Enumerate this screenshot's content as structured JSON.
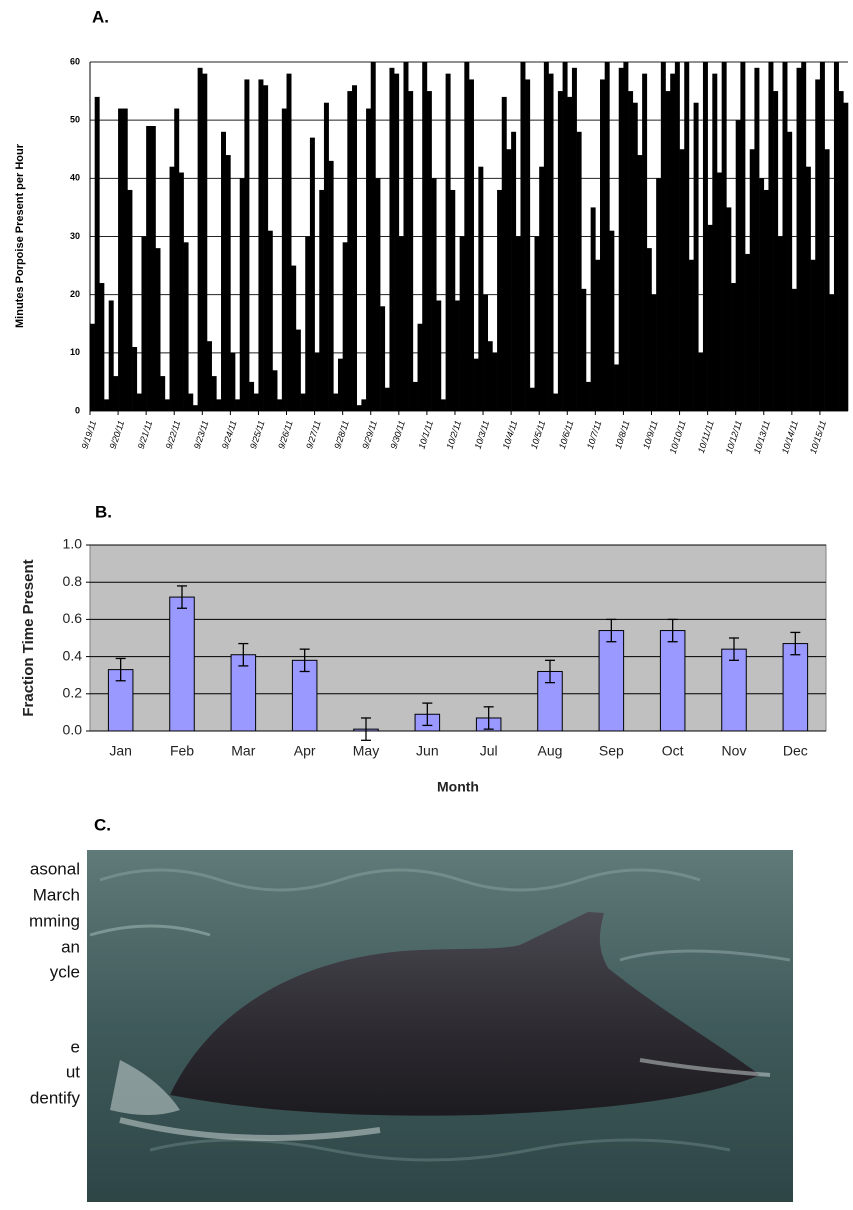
{
  "chart_data": [
    {
      "type": "bar",
      "title": "A.",
      "y_label": "Minutes Porpoise Present per Hour",
      "color": "#000000",
      "ylim": [
        0,
        60
      ],
      "yticks": [
        0,
        10,
        20,
        30,
        40,
        50,
        60
      ],
      "grid": true,
      "days": [
        {
          "label": "9/19/11",
          "values": [
            15,
            54,
            22,
            2,
            19,
            6
          ]
        },
        {
          "label": "9/20/11",
          "values": [
            52,
            52,
            38,
            11,
            3,
            30
          ]
        },
        {
          "label": "9/21/11",
          "values": [
            49,
            49,
            28,
            6,
            2,
            42
          ]
        },
        {
          "label": "9/22/11",
          "values": [
            52,
            41,
            29,
            3,
            1,
            59
          ]
        },
        {
          "label": "9/23/11",
          "values": [
            58,
            12,
            6,
            2,
            48,
            44
          ]
        },
        {
          "label": "9/24/11",
          "values": [
            10,
            2,
            40,
            57,
            5,
            3
          ]
        },
        {
          "label": "9/25/11",
          "values": [
            57,
            56,
            31,
            7,
            2,
            52
          ]
        },
        {
          "label": "9/26/11",
          "values": [
            58,
            25,
            14,
            3,
            30,
            47
          ]
        },
        {
          "label": "9/27/11",
          "values": [
            10,
            38,
            53,
            43,
            3,
            9
          ]
        },
        {
          "label": "9/28/11",
          "values": [
            29,
            55,
            56,
            1,
            2,
            52
          ]
        },
        {
          "label": "9/29/11",
          "values": [
            60,
            40,
            18,
            4,
            59,
            58
          ]
        },
        {
          "label": "9/30/11",
          "values": [
            30,
            60,
            55,
            5,
            15,
            60
          ]
        },
        {
          "label": "10/1/11",
          "values": [
            55,
            40,
            19,
            2,
            58,
            38
          ]
        },
        {
          "label": "10/2/11",
          "values": [
            19,
            30,
            60,
            57,
            9,
            42
          ]
        },
        {
          "label": "10/3/11",
          "values": [
            20,
            12,
            10,
            38,
            54,
            45
          ]
        },
        {
          "label": "10/4/11",
          "values": [
            48,
            30,
            60,
            57,
            4,
            30
          ]
        },
        {
          "label": "10/5/11",
          "values": [
            42,
            60,
            58,
            3,
            55,
            60
          ]
        },
        {
          "label": "10/6/11",
          "values": [
            54,
            59,
            48,
            21,
            5,
            35
          ]
        },
        {
          "label": "10/7/11",
          "values": [
            26,
            57,
            60,
            31,
            8,
            59
          ]
        },
        {
          "label": "10/8/11",
          "values": [
            60,
            55,
            53,
            44,
            58,
            28
          ]
        },
        {
          "label": "10/9/11",
          "values": [
            20,
            40,
            60,
            55,
            58,
            60
          ]
        },
        {
          "label": "10/10/11",
          "values": [
            45,
            60,
            26,
            53,
            10,
            60
          ]
        },
        {
          "label": "10/11/11",
          "values": [
            32,
            58,
            41,
            60,
            35,
            22
          ]
        },
        {
          "label": "10/12/11",
          "values": [
            50,
            60,
            27,
            45,
            59,
            40
          ]
        },
        {
          "label": "10/13/11",
          "values": [
            38,
            60,
            55,
            30,
            60,
            48
          ]
        },
        {
          "label": "10/14/11",
          "values": [
            21,
            59,
            60,
            42,
            26,
            57
          ]
        },
        {
          "label": "10/15/11",
          "values": [
            60,
            45,
            20,
            60,
            55,
            53
          ]
        }
      ]
    },
    {
      "type": "errorbar",
      "title": "B.",
      "x_label": "Month",
      "y_label": "Fraction Time Present",
      "color": "#9999ff",
      "ylim": [
        0,
        1
      ],
      "grid": true,
      "yticks": [
        {
          "value": 0,
          "label": "0.0"
        },
        {
          "value": 0.2,
          "label": "0.2"
        },
        {
          "value": 0.4,
          "label": "0.4"
        },
        {
          "value": 0.6,
          "label": "0.6"
        },
        {
          "value": 0.8,
          "label": "0.8"
        },
        {
          "value": 1,
          "label": "1.0"
        }
      ],
      "categories": [
        "Jan",
        "Feb",
        "Mar",
        "Apr",
        "May",
        "Jun",
        "Jul",
        "Aug",
        "Sep",
        "Oct",
        "Nov",
        "Dec"
      ],
      "values": [
        0.33,
        0.72,
        0.41,
        0.38,
        0.01,
        0.09,
        0.07,
        0.32,
        0.54,
        0.54,
        0.44,
        0.47
      ],
      "errors": [
        0.06,
        0.06,
        0.06,
        0.06,
        0.06,
        0.06,
        0.06,
        0.06,
        0.06,
        0.06,
        0.06,
        0.06
      ]
    }
  ],
  "photo": {
    "title": "C."
  },
  "side_text": [
    "asonal",
    "March",
    "mming",
    "an",
    "ycle",
    "e",
    "ut",
    "dentify"
  ]
}
